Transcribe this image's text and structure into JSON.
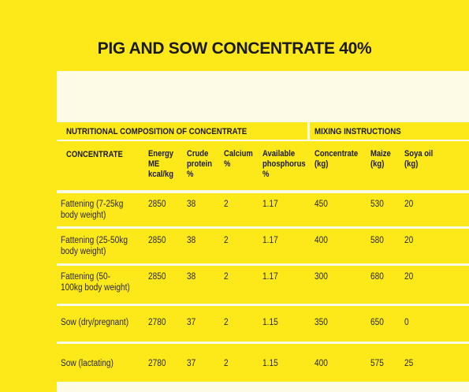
{
  "title": "PIG AND SOW CONCENTRATE 40%",
  "sections": {
    "nutritional": "NUTRITIONAL COMPOSITION OF CONCENTRATE",
    "mixing": "MIXING INSTRUCTIONS"
  },
  "columns": [
    "CONCENTRATE",
    "Energy\nME\nkcal/kg",
    "Crude\nprotein\n%",
    "Calcium\n%",
    "Available\nphosphorus\n%",
    "Concentrate\n(kg)",
    "Maize\n(kg)",
    "Soya oil\n(kg)"
  ],
  "rows": [
    [
      "Fattening (7-25kg\nbody weight)",
      "2850",
      "38",
      "2",
      "1.17",
      "450",
      "530",
      "20"
    ],
    [
      "Fattening (25-50kg\nbody weight)",
      "2850",
      "38",
      "2",
      "1.17",
      "400",
      "580",
      "20"
    ],
    [
      "Fattening (50-\n100kg body weight)",
      "2850",
      "38",
      "2",
      "1.17",
      "300",
      "680",
      "20"
    ],
    [
      "Sow (dry/pregnant)",
      "2780",
      "37",
      "2",
      "1.15",
      "350",
      "650",
      "0"
    ],
    [
      "Sow (lactating)",
      "2780",
      "37",
      "2",
      "1.15",
      "400",
      "575",
      "25"
    ]
  ],
  "colors": {
    "background": "#fde81a",
    "panel": "#fdfbe6",
    "text": "#1a1a1a"
  }
}
